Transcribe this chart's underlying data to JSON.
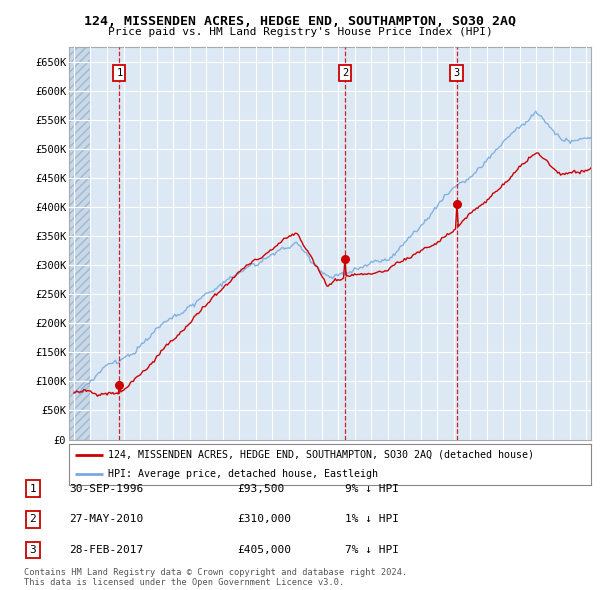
{
  "title": "124, MISSENDEN ACRES, HEDGE END, SOUTHAMPTON, SO30 2AQ",
  "subtitle": "Price paid vs. HM Land Registry's House Price Index (HPI)",
  "xlim": [
    1993.7,
    2025.3
  ],
  "ylim": [
    0,
    675000
  ],
  "yticks": [
    0,
    50000,
    100000,
    150000,
    200000,
    250000,
    300000,
    350000,
    400000,
    450000,
    500000,
    550000,
    600000,
    650000
  ],
  "ytick_labels": [
    "£0",
    "£50K",
    "£100K",
    "£150K",
    "£200K",
    "£250K",
    "£300K",
    "£350K",
    "£400K",
    "£450K",
    "£500K",
    "£550K",
    "£600K",
    "£650K"
  ],
  "sale_year_floats": [
    1996.75,
    2010.41,
    2017.16
  ],
  "sale_prices": [
    93500,
    310000,
    405000
  ],
  "sale_labels": [
    "30-SEP-1996",
    "27-MAY-2010",
    "28-FEB-2017"
  ],
  "sale_pct": [
    "9% ↓ HPI",
    "1% ↓ HPI",
    "7% ↓ HPI"
  ],
  "property_color": "#cc0000",
  "hpi_color": "#7aaadd",
  "legend_property": "124, MISSENDEN ACRES, HEDGE END, SOUTHAMPTON, SO30 2AQ (detached house)",
  "legend_hpi": "HPI: Average price, detached house, Eastleigh",
  "footnote": "Contains HM Land Registry data © Crown copyright and database right 2024.\nThis data is licensed under the Open Government Licence v3.0.",
  "background_color": "#ffffff",
  "plot_bg_color": "#dce9f5",
  "grid_color": "#ffffff",
  "hatch_end_year": 1995.0
}
